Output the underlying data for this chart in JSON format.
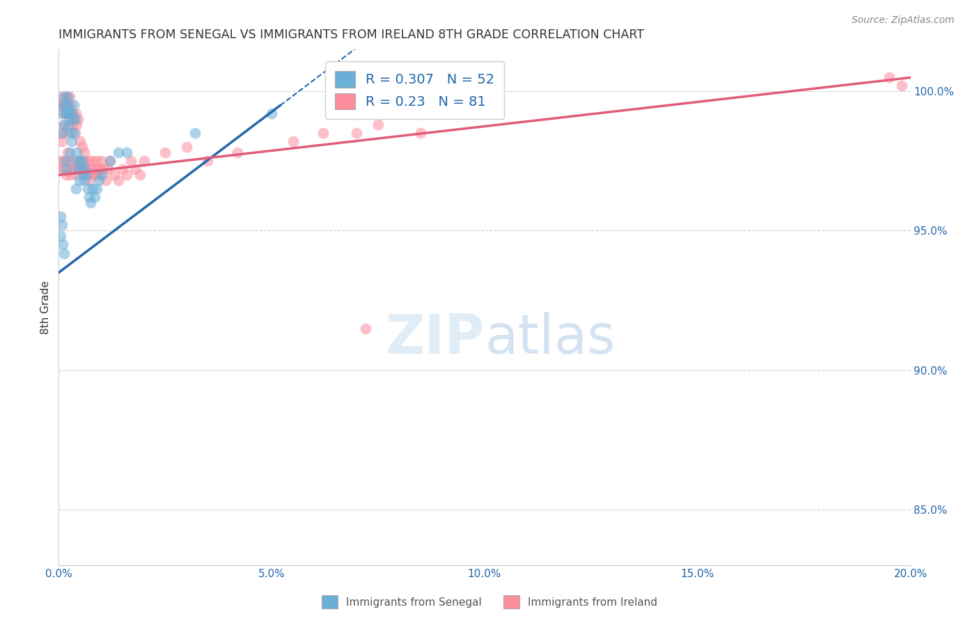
{
  "title": "IMMIGRANTS FROM SENEGAL VS IMMIGRANTS FROM IRELAND 8TH GRADE CORRELATION CHART",
  "source": "Source: ZipAtlas.com",
  "ylabel": "8th Grade",
  "xlim": [
    0.0,
    20.0
  ],
  "ylim": [
    83.0,
    101.5
  ],
  "senegal_R": 0.307,
  "senegal_N": 52,
  "ireland_R": 0.23,
  "ireland_N": 81,
  "senegal_color": "#6baed6",
  "ireland_color": "#fc8d9c",
  "senegal_line_color": "#2166ac",
  "ireland_line_color": "#e05c7a",
  "legend_label_senegal": "Immigrants from Senegal",
  "legend_label_ireland": "Immigrants from Ireland",
  "senegal_x": [
    0.05,
    0.05,
    0.07,
    0.08,
    0.08,
    0.1,
    0.1,
    0.12,
    0.12,
    0.13,
    0.15,
    0.15,
    0.17,
    0.18,
    0.2,
    0.2,
    0.22,
    0.22,
    0.25,
    0.25,
    0.28,
    0.3,
    0.3,
    0.32,
    0.35,
    0.35,
    0.38,
    0.4,
    0.4,
    0.42,
    0.45,
    0.48,
    0.5,
    0.52,
    0.55,
    0.58,
    0.6,
    0.62,
    0.65,
    0.68,
    0.72,
    0.75,
    0.8,
    0.85,
    0.9,
    0.95,
    1.0,
    1.2,
    1.4,
    1.6,
    3.2,
    5.0
  ],
  "senegal_y": [
    95.5,
    94.8,
    99.2,
    98.5,
    95.2,
    99.5,
    94.5,
    99.8,
    98.8,
    94.2,
    99.5,
    97.5,
    99.2,
    97.2,
    99.8,
    99.2,
    99.5,
    98.8,
    99.2,
    97.8,
    98.5,
    99.0,
    98.2,
    99.2,
    99.5,
    98.5,
    99.0,
    97.5,
    96.5,
    97.8,
    97.2,
    96.8,
    97.5,
    97.2,
    97.5,
    97.0,
    96.8,
    97.2,
    97.0,
    96.5,
    96.2,
    96.0,
    96.5,
    96.2,
    96.5,
    96.8,
    97.0,
    97.5,
    97.8,
    97.8,
    98.5,
    99.2
  ],
  "ireland_x": [
    0.03,
    0.05,
    0.05,
    0.07,
    0.08,
    0.08,
    0.1,
    0.1,
    0.12,
    0.12,
    0.13,
    0.15,
    0.15,
    0.17,
    0.18,
    0.18,
    0.2,
    0.2,
    0.22,
    0.22,
    0.25,
    0.25,
    0.28,
    0.28,
    0.3,
    0.3,
    0.32,
    0.35,
    0.35,
    0.38,
    0.4,
    0.4,
    0.42,
    0.42,
    0.45,
    0.45,
    0.48,
    0.5,
    0.52,
    0.55,
    0.58,
    0.6,
    0.62,
    0.65,
    0.68,
    0.7,
    0.72,
    0.75,
    0.78,
    0.8,
    0.85,
    0.88,
    0.9,
    0.92,
    0.95,
    0.98,
    1.0,
    1.05,
    1.1,
    1.15,
    1.2,
    1.3,
    1.4,
    1.5,
    1.6,
    1.7,
    1.8,
    1.9,
    2.0,
    2.5,
    3.0,
    3.5,
    4.2,
    5.5,
    6.2,
    7.0,
    7.5,
    8.5,
    19.5,
    19.8,
    7.2
  ],
  "ireland_y": [
    97.5,
    97.2,
    99.5,
    98.5,
    98.2,
    99.8,
    97.5,
    99.5,
    98.8,
    99.2,
    97.2,
    99.5,
    98.5,
    99.2,
    97.0,
    99.8,
    99.5,
    97.8,
    99.2,
    97.5,
    99.8,
    97.2,
    99.5,
    97.0,
    99.2,
    97.5,
    98.8,
    99.0,
    97.2,
    98.5,
    99.2,
    97.2,
    98.8,
    97.0,
    99.0,
    97.5,
    97.2,
    98.2,
    97.5,
    98.0,
    97.2,
    97.8,
    97.5,
    97.2,
    97.0,
    97.5,
    96.8,
    97.2,
    97.0,
    97.5,
    97.2,
    97.0,
    97.5,
    97.2,
    97.0,
    97.2,
    97.5,
    97.2,
    96.8,
    97.2,
    97.5,
    97.0,
    96.8,
    97.2,
    97.0,
    97.5,
    97.2,
    97.0,
    97.5,
    97.8,
    98.0,
    97.5,
    97.8,
    98.2,
    98.5,
    98.5,
    98.8,
    98.5,
    100.5,
    100.2,
    91.5
  ],
  "senegal_line_x0": 0.0,
  "senegal_line_y0": 93.5,
  "senegal_line_x1": 5.2,
  "senegal_line_y1": 99.5,
  "senegal_solid_end_x": 5.2,
  "ireland_line_x0": 0.0,
  "ireland_line_y0": 97.0,
  "ireland_line_x1": 20.0,
  "ireland_line_y1": 100.5
}
